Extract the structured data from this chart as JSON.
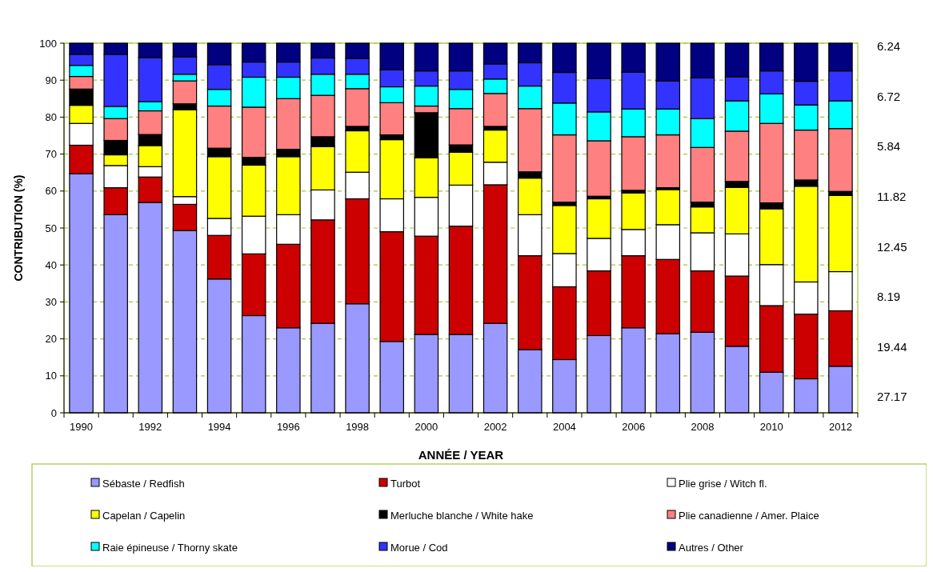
{
  "chart_data": {
    "type": "bar",
    "stacked": true,
    "xlabel": "ANNÉE / YEAR",
    "ylabel": "CONTRIBUTION (%)",
    "categories": [
      "1990",
      null,
      "1992",
      null,
      "1994",
      null,
      "1996",
      null,
      "1998",
      null,
      "2000",
      null,
      "2002",
      null,
      "2004",
      null,
      "2006",
      null,
      "2008",
      null,
      "2010",
      null,
      "2012"
    ],
    "ylim": [
      0,
      100
    ],
    "yticks": [
      0,
      10,
      20,
      30,
      40,
      50,
      60,
      70,
      80,
      90,
      100
    ],
    "grid": "y",
    "legend": "bottom",
    "series": [
      {
        "name": "Sébaste / Redfish",
        "color": "#9999ff",
        "values": [
          64.7,
          53.6,
          56.9,
          49.3,
          36.2,
          26.3,
          23.0,
          24.2,
          29.5,
          19.3,
          21.2,
          21.2,
          24.2,
          17.1,
          14.4,
          20.9,
          23.0,
          21.4,
          21.8,
          18.0,
          11.0,
          9.2,
          12.6
        ]
      },
      {
        "name": "Turbot",
        "color": "#cc0000",
        "values": [
          7.7,
          7.3,
          6.9,
          7.1,
          11.8,
          16.7,
          22.6,
          28.0,
          28.4,
          29.7,
          26.6,
          29.3,
          37.5,
          25.4,
          19.7,
          17.5,
          19.5,
          20.1,
          16.6,
          19.0,
          18.0,
          17.5,
          15.0
        ]
      },
      {
        "name": "Plie grise / Witch fl.",
        "color": "#ffffff",
        "values": [
          5.9,
          6.0,
          2.8,
          2.1,
          4.6,
          10.2,
          8.0,
          8.1,
          7.2,
          8.9,
          10.5,
          11.1,
          6.1,
          11.1,
          9.0,
          8.8,
          7.1,
          9.4,
          10.3,
          11.4,
          11.1,
          8.7,
          10.6
        ]
      },
      {
        "name": "Capelan / Capelin",
        "color": "#ffff00",
        "values": [
          4.9,
          2.9,
          5.7,
          23.5,
          16.7,
          13.8,
          15.7,
          11.7,
          11.2,
          16.0,
          10.7,
          8.9,
          8.7,
          9.9,
          13.0,
          10.7,
          9.9,
          9.5,
          7.0,
          12.6,
          15.1,
          25.9,
          20.6
        ]
      },
      {
        "name": "Merluche blanche / White hake",
        "color": "#000000",
        "values": [
          4.4,
          3.9,
          3.0,
          1.6,
          2.3,
          2.1,
          2.0,
          2.7,
          1.2,
          1.3,
          12.2,
          2.0,
          1.0,
          1.7,
          0.9,
          0.7,
          0.7,
          0.5,
          1.3,
          1.6,
          1.6,
          1.7,
          1.1
        ]
      },
      {
        "name": "Plie canadienne / Amer. Plaice",
        "color": "#ff8080",
        "values": [
          3.4,
          5.9,
          6.4,
          6.2,
          11.4,
          13.6,
          13.7,
          11.2,
          10.2,
          8.7,
          1.8,
          9.8,
          8.9,
          17.1,
          18.2,
          15.0,
          14.5,
          14.3,
          14.8,
          13.6,
          21.5,
          13.5,
          17.0
        ]
      },
      {
        "name": "Raie épineuse / Thorny skate",
        "color": "#00ffff",
        "values": [
          3.0,
          3.3,
          2.5,
          1.8,
          4.5,
          8.1,
          5.8,
          5.7,
          3.9,
          4.3,
          5.4,
          5.2,
          3.9,
          6.1,
          8.6,
          7.8,
          7.5,
          7.0,
          7.8,
          8.2,
          8.0,
          6.8,
          7.5
        ]
      },
      {
        "name": "Morue / Cod",
        "color": "#3333ff",
        "values": [
          3.0,
          14.1,
          11.9,
          4.7,
          6.7,
          4.1,
          4.1,
          4.4,
          4.3,
          4.6,
          4.1,
          5.0,
          4.1,
          6.3,
          8.3,
          9.1,
          10.0,
          7.6,
          11.0,
          6.5,
          6.2,
          6.4,
          8.1
        ]
      },
      {
        "name": "Autres / Other",
        "color": "#000080",
        "values": [
          3.0,
          3.0,
          3.9,
          3.7,
          5.8,
          5.1,
          5.1,
          4.0,
          4.1,
          7.2,
          7.5,
          7.5,
          5.6,
          5.3,
          7.9,
          9.5,
          7.8,
          10.2,
          9.4,
          9.1,
          7.5,
          10.3,
          7.5
        ]
      }
    ],
    "annotations": [
      "6.24",
      "6.72",
      "5.84",
      "11.82",
      "12.45",
      "8.19",
      "19.44",
      "27.17"
    ]
  }
}
